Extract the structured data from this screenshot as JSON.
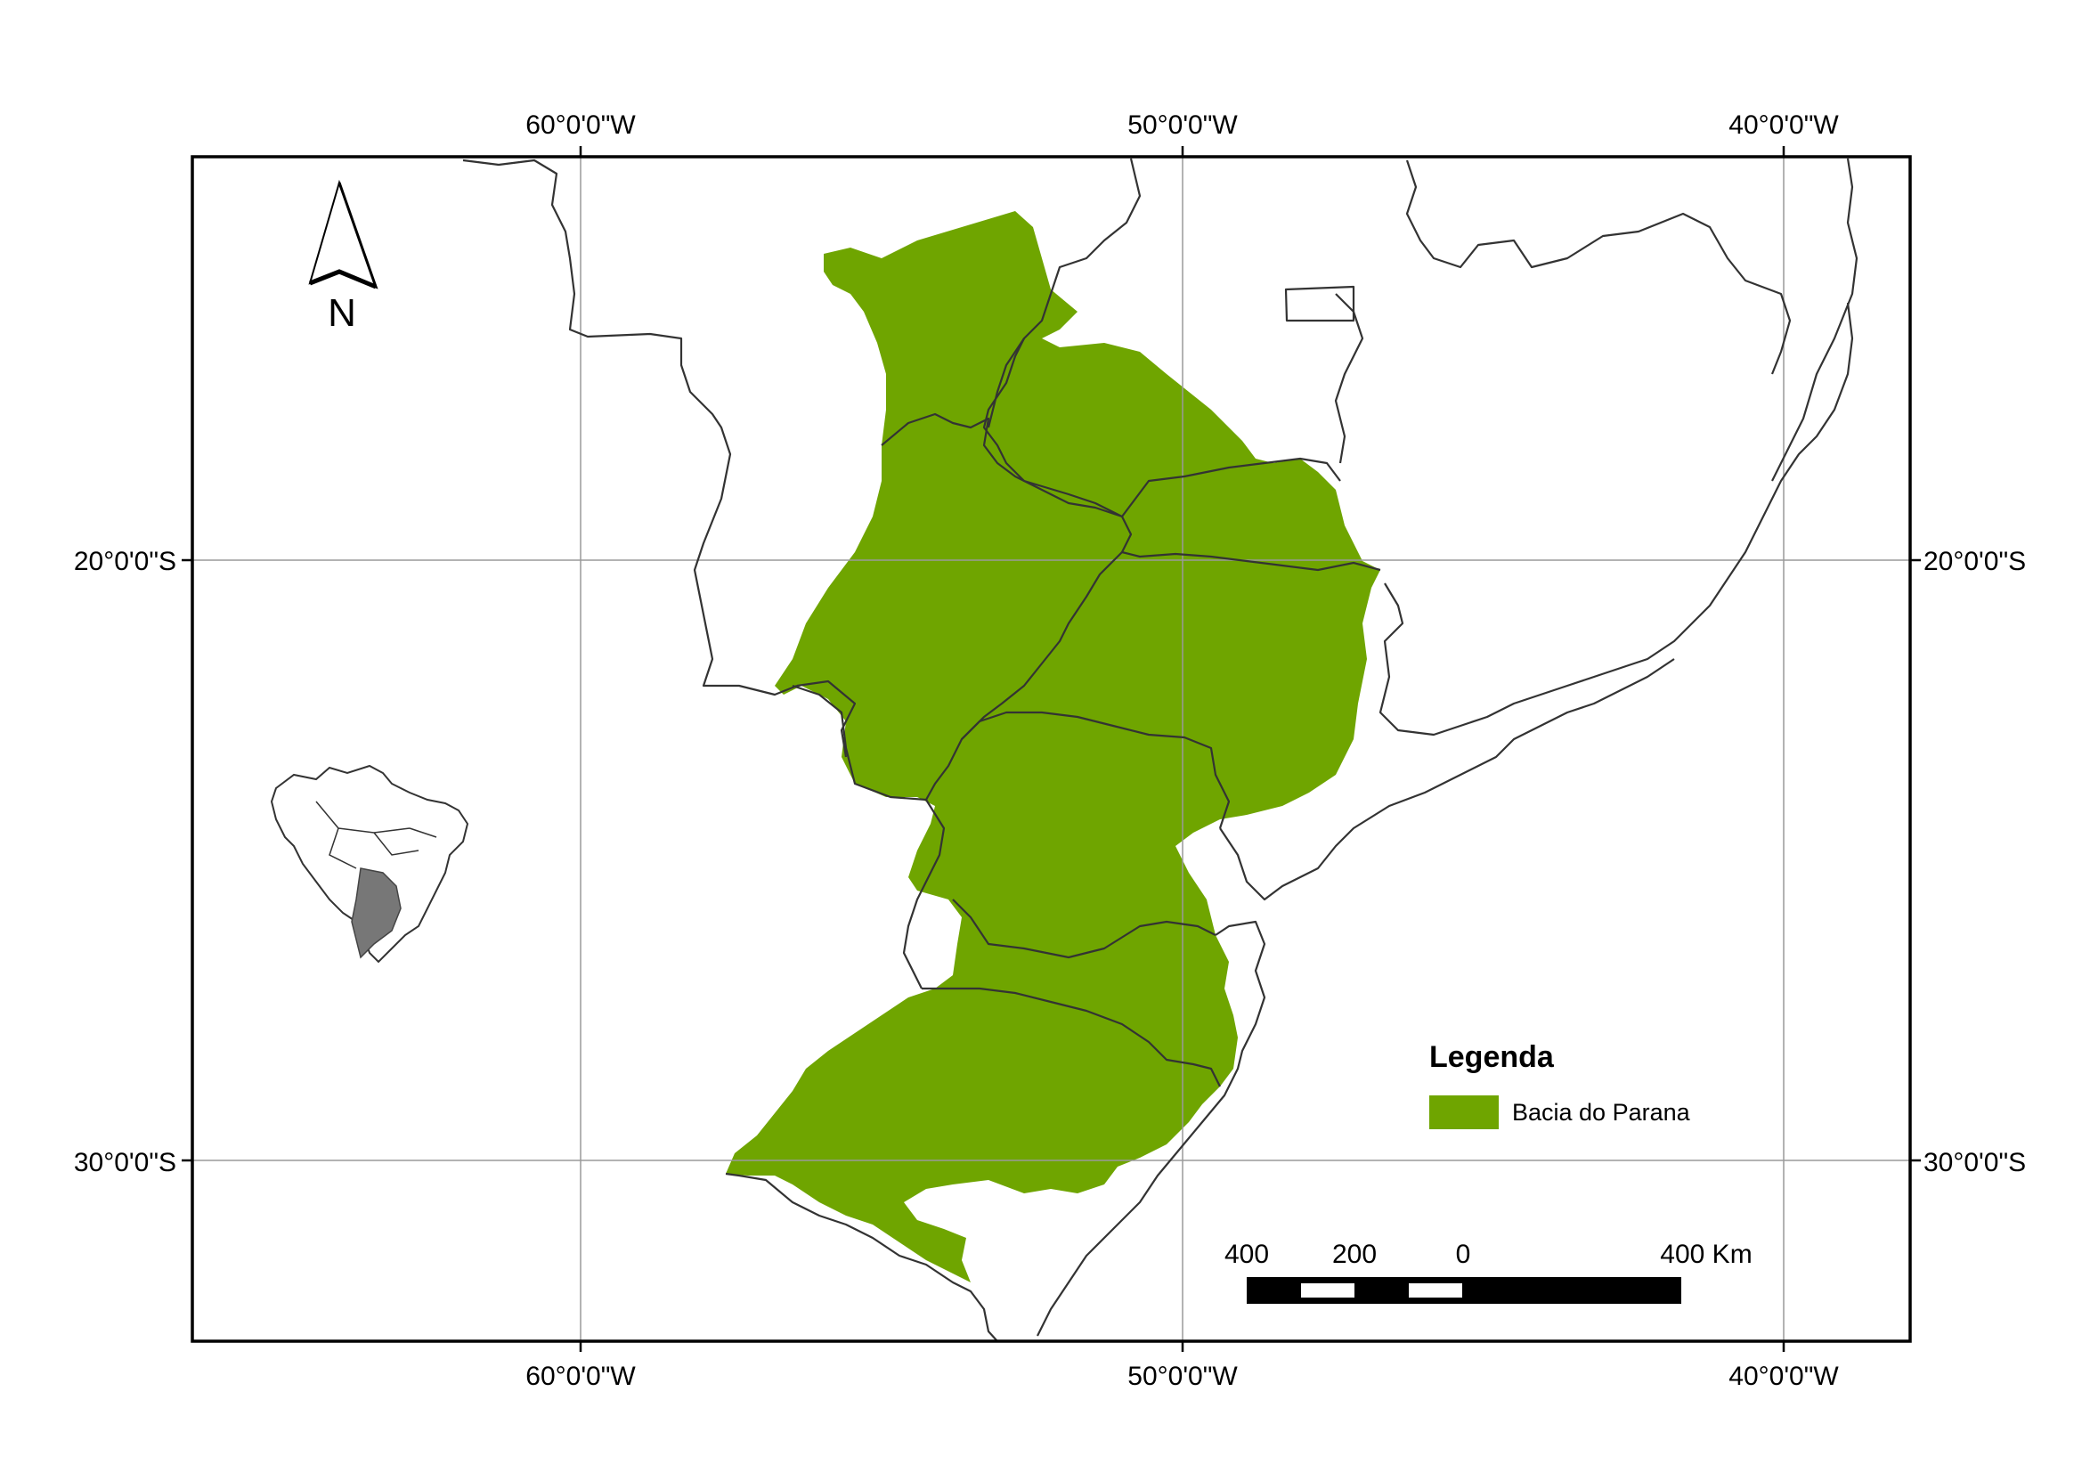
{
  "map": {
    "graticule": {
      "longitude_labels": [
        "60°0'0\"W",
        "50°0'0\"W",
        "40°0'0\"W"
      ],
      "latitude_labels": [
        "20°0'0\"S",
        "30°0'0\"S"
      ]
    },
    "north_arrow": {
      "label": "N"
    },
    "legend": {
      "title": "Legenda",
      "items": [
        {
          "label": "Bacia do Parana",
          "color": "#6fa500"
        }
      ]
    },
    "scale_bar": {
      "labels": [
        "400",
        "200",
        "0",
        "400 Km"
      ]
    },
    "colors": {
      "basin_fill": "#6fa500",
      "border": "#333333",
      "grid": "#9a9a9a",
      "frame": "#000000"
    },
    "inset": {
      "description_icon": "brazil-locator-inset"
    }
  }
}
